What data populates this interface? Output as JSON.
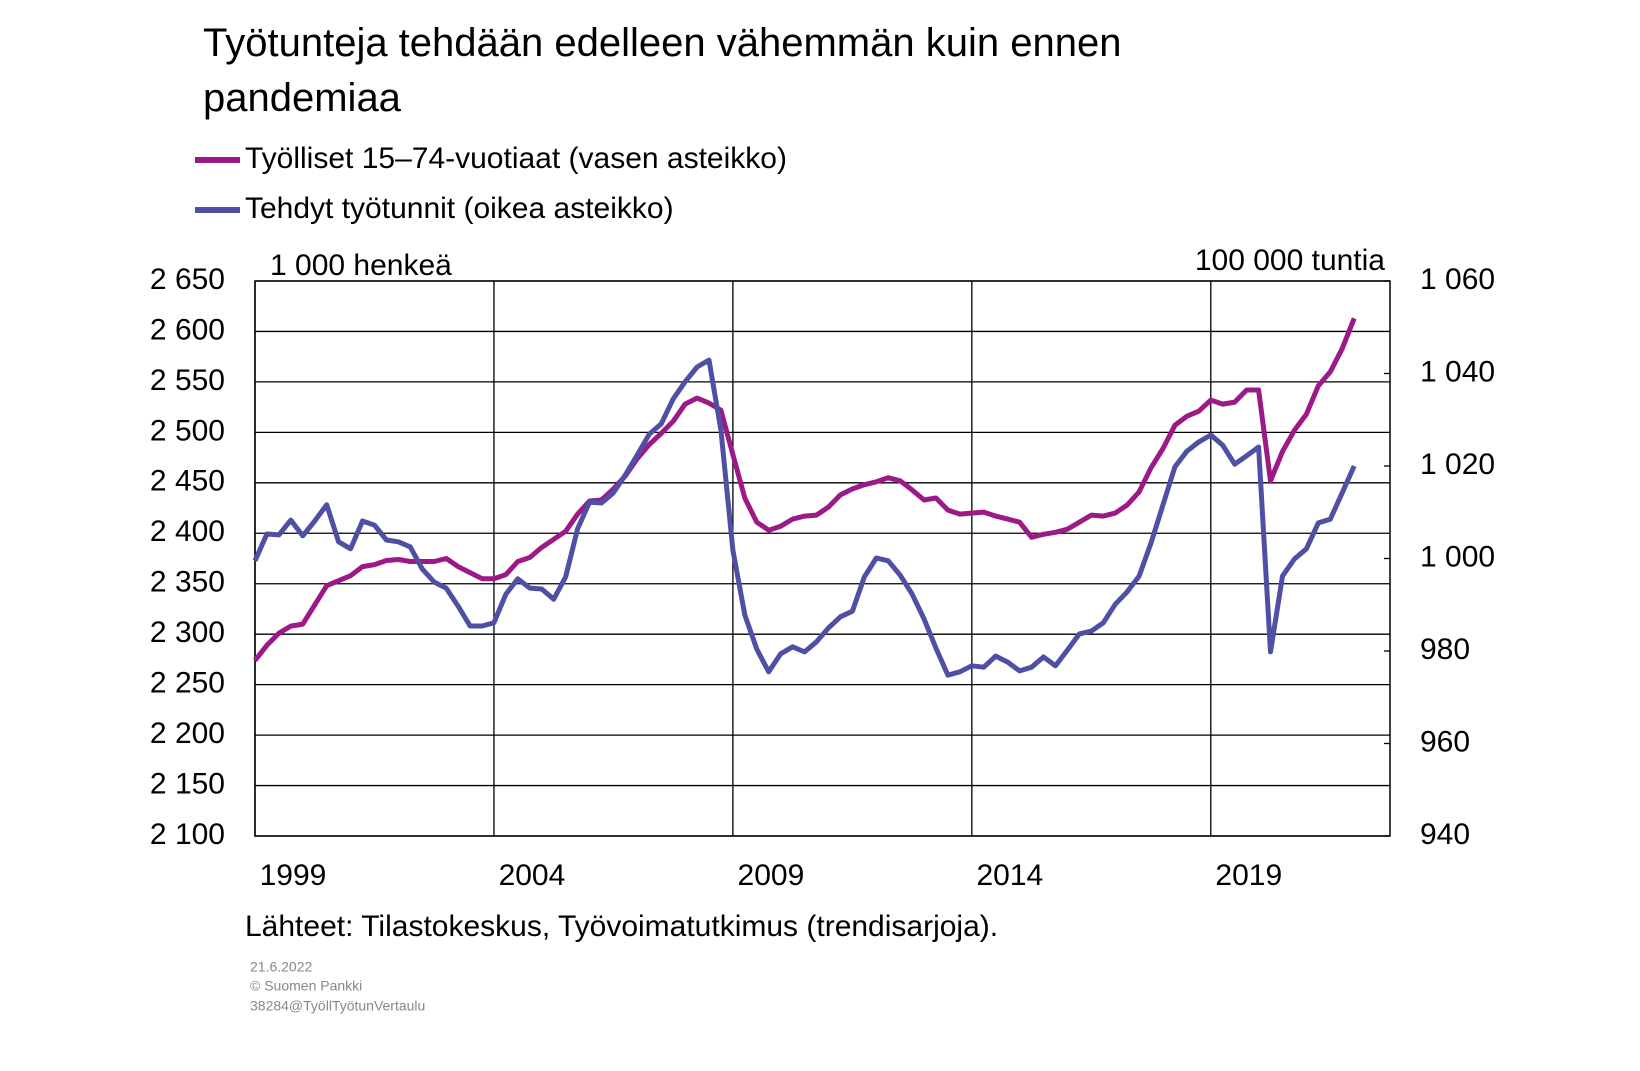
{
  "chart_data": {
    "type": "line",
    "title": "Työtunteja tehdään edelleen vähemmän kuin ennen pandemiaa",
    "y_label": "1 000 henkeä",
    "y2_label": "100 000 tuntia",
    "source": "Lähteet: Tilastokeskus, Työvoimatutkimus (trendisarjoja).",
    "footer": [
      "21.6.2022",
      "© Suomen Pankki",
      "38284@TyöllTyötunVertaulu"
    ],
    "x": [
      1999,
      1999.25,
      1999.5,
      1999.75,
      2000,
      2000.25,
      2000.5,
      2000.75,
      2001,
      2001.25,
      2001.5,
      2001.75,
      2002,
      2002.25,
      2002.5,
      2002.75,
      2003,
      2003.25,
      2003.5,
      2003.75,
      2004,
      2004.25,
      2004.5,
      2004.75,
      2005,
      2005.25,
      2005.5,
      2005.75,
      2006,
      2006.25,
      2006.5,
      2006.75,
      2007,
      2007.25,
      2007.5,
      2007.75,
      2008,
      2008.25,
      2008.5,
      2008.75,
      2009,
      2009.25,
      2009.5,
      2009.75,
      2010,
      2010.25,
      2010.5,
      2010.75,
      2011,
      2011.25,
      2011.5,
      2011.75,
      2012,
      2012.25,
      2012.5,
      2012.75,
      2013,
      2013.25,
      2013.5,
      2013.75,
      2014,
      2014.25,
      2014.5,
      2014.75,
      2015,
      2015.25,
      2015.5,
      2015.75,
      2016,
      2016.25,
      2016.5,
      2016.75,
      2017,
      2017.25,
      2017.5,
      2017.75,
      2018,
      2018.25,
      2018.5,
      2018.75,
      2019,
      2019.25,
      2019.5,
      2019.75,
      2020,
      2020.25,
      2020.5,
      2020.75,
      2021,
      2021.25,
      2021.5,
      2021.75,
      2022
    ],
    "series": [
      {
        "name": "Työlliset 15–74-vuotiaat (vasen asteikko)",
        "color": "#9c1a87",
        "axis": "y",
        "values": [
          2274,
          2289,
          2301,
          2308,
          2310,
          2329,
          2348,
          2353,
          2358,
          2367,
          2369,
          2373,
          2374,
          2372,
          2372,
          2372,
          2375,
          2367,
          2361,
          2355,
          2355,
          2359,
          2372,
          2376,
          2386,
          2394,
          2402,
          2419,
          2432,
          2433,
          2444,
          2457,
          2474,
          2488,
          2499,
          2511,
          2528,
          2534,
          2529,
          2522,
          2478,
          2435,
          2411,
          2403,
          2407,
          2414,
          2417,
          2418,
          2426,
          2438,
          2444,
          2448,
          2451,
          2455,
          2452,
          2443,
          2433,
          2435,
          2423,
          2419,
          2420,
          2421,
          2417,
          2414,
          2411,
          2396,
          2399,
          2401,
          2404,
          2411,
          2418,
          2417,
          2420,
          2428,
          2441,
          2465,
          2484,
          2507,
          2516,
          2521,
          2532,
          2528,
          2530,
          2542,
          2542,
          2452,
          2481,
          2502,
          2518,
          2546,
          2560,
          2583,
          2613
        ]
      },
      {
        "name": "Tehdyt työtunnit (oikea asteikko)",
        "color": "#4f4fa3",
        "axis": "y2",
        "values": [
          999.5,
          1005.3,
          1005.1,
          1008.3,
          1004.9,
          1008.1,
          1011.6,
          1003.6,
          1002.1,
          1008.1,
          1007.2,
          1004.0,
          1003.6,
          1002.5,
          997.7,
          994.9,
          993.6,
          989.7,
          985.4,
          985.4,
          986.1,
          992.3,
          995.6,
          993.6,
          993.4,
          991.2,
          996.0,
          1006.4,
          1012.2,
          1012.0,
          1014.2,
          1018.1,
          1022.4,
          1026.9,
          1029.1,
          1034.5,
          1038.2,
          1041.4,
          1042.9,
          1027.8,
          1001.8,
          987.8,
          980.4,
          975.5,
          979.4,
          980.9,
          979.8,
          982.0,
          985.0,
          987.4,
          988.6,
          996.0,
          1000.1,
          999.5,
          996.4,
          992.3,
          986.9,
          980.6,
          974.8,
          975.5,
          976.8,
          976.5,
          978.9,
          977.6,
          975.7,
          976.5,
          978.7,
          976.8,
          980.2,
          983.7,
          984.3,
          986.1,
          990.1,
          992.8,
          996.2,
          1003.4,
          1011.6,
          1019.8,
          1023.2,
          1025.2,
          1026.7,
          1024.5,
          1020.4,
          1022.2,
          1024.1,
          979.8,
          996.2,
          999.9,
          1002.1,
          1007.7,
          1008.5,
          1014.2,
          1020.0
        ]
      }
    ],
    "xlim": [
      1999,
      2022.75
    ],
    "xticks": [
      1999,
      2004,
      2009,
      2014,
      2019
    ],
    "ylim": [
      2100,
      2650
    ],
    "yticks": [
      {
        "value": 2100,
        "label": "2 100"
      },
      {
        "value": 2150,
        "label": "2 150"
      },
      {
        "value": 2200,
        "label": "2 200"
      },
      {
        "value": 2250,
        "label": "2 250"
      },
      {
        "value": 2300,
        "label": "2 300"
      },
      {
        "value": 2350,
        "label": "2 350"
      },
      {
        "value": 2400,
        "label": "2 400"
      },
      {
        "value": 2450,
        "label": "2 450"
      },
      {
        "value": 2500,
        "label": "2 500"
      },
      {
        "value": 2550,
        "label": "2 550"
      },
      {
        "value": 2600,
        "label": "2 600"
      },
      {
        "value": 2650,
        "label": "2 650"
      }
    ],
    "y2lim": [
      940,
      1060
    ],
    "y2ticks": [
      940,
      960,
      980,
      {
        "value": 1000,
        "label": "1 000"
      },
      {
        "value": 1020,
        "label": "1 020"
      },
      {
        "value": 1040,
        "label": "1 040"
      },
      {
        "value": 1060,
        "label": "1 060"
      }
    ],
    "grid": true,
    "legend": "top-left"
  }
}
